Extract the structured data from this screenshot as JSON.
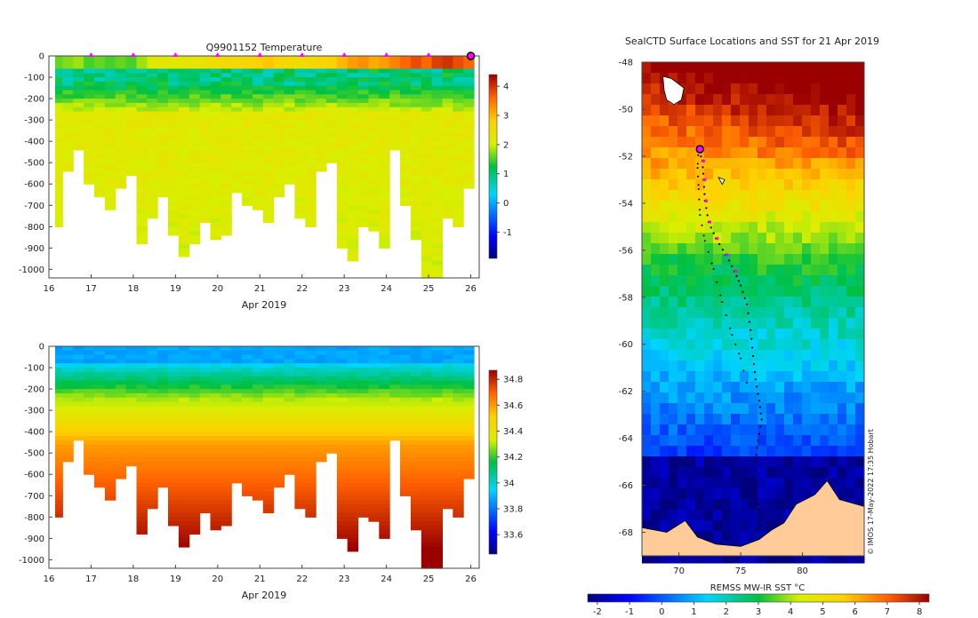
{
  "chart_data": [
    {
      "id": "temperature-section",
      "type": "heatmap",
      "title": "Q9901152  Temperature",
      "xlabel": "Apr 2019",
      "ylabel": "",
      "x_ticks": [
        "16",
        "17",
        "18",
        "19",
        "20",
        "21",
        "22",
        "23",
        "24",
        "25",
        "26"
      ],
      "xlim": [
        16,
        26.2
      ],
      "y_ticks": [
        "0",
        "-100",
        "-200",
        "-300",
        "-400",
        "-500",
        "-600",
        "-700",
        "-800",
        "-900",
        "-1000"
      ],
      "ylim": [
        -1040,
        0
      ],
      "profile_marker_days": [
        17,
        18,
        19,
        20,
        21,
        22,
        23,
        24,
        25
      ],
      "current_marker_day": 26,
      "profiles": {
        "day": [
          16.2,
          16.45,
          16.7,
          16.95,
          17.2,
          17.45,
          17.7,
          17.95,
          18.2,
          18.45,
          18.7,
          18.95,
          19.2,
          19.45,
          19.7,
          19.95,
          20.2,
          20.45,
          20.7,
          20.95,
          21.2,
          21.45,
          21.7,
          21.95,
          22.2,
          22.45,
          22.7,
          22.95,
          23.2,
          23.45,
          23.7,
          23.95,
          24.2,
          24.45,
          24.7,
          24.95,
          25.2,
          25.45,
          25.7,
          25.95
        ],
        "max_depth": [
          800,
          540,
          440,
          600,
          660,
          720,
          620,
          560,
          880,
          760,
          660,
          840,
          940,
          880,
          780,
          860,
          840,
          640,
          700,
          720,
          780,
          660,
          600,
          760,
          800,
          540,
          500,
          900,
          960,
          800,
          820,
          890,
          430,
          700,
          860,
          1040,
          1040,
          760,
          800,
          620
        ],
        "surface_temp": [
          1.6,
          1.7,
          1.8,
          1.5,
          1.6,
          1.5,
          1.6,
          1.5,
          1.8,
          2.2,
          2.3,
          2.2,
          2.3,
          2.3,
          2.4,
          2.5,
          2.6,
          2.6,
          2.7,
          2.8,
          2.9,
          2.7,
          2.6,
          2.5,
          2.6,
          2.7,
          2.8,
          3.0,
          3.2,
          3.3,
          3.1,
          3.2,
          3.4,
          3.6,
          3.8,
          3.6,
          3.9,
          4.0,
          3.8,
          3.6
        ]
      },
      "colorbar": {
        "ticks": [
          "4",
          "3",
          "2",
          "1",
          "0",
          "-1"
        ],
        "range": [
          -1.9,
          4.4
        ]
      }
    },
    {
      "id": "salinity-section",
      "type": "heatmap",
      "title": "",
      "xlabel": "Apr 2019",
      "x_ticks": [
        "16",
        "17",
        "18",
        "19",
        "20",
        "21",
        "22",
        "23",
        "24",
        "25",
        "26"
      ],
      "xlim": [
        16,
        26.2
      ],
      "y_ticks": [
        "0",
        "-100",
        "-200",
        "-300",
        "-400",
        "-500",
        "-600",
        "-700",
        "-800",
        "-900",
        "-1000"
      ],
      "ylim": [
        -1040,
        0
      ],
      "colorbar": {
        "ticks": [
          "34.8",
          "34.6",
          "34.4",
          "34.2",
          "34",
          "33.8",
          "33.6"
        ],
        "range": [
          33.45,
          34.87
        ]
      }
    },
    {
      "id": "sst-map",
      "type": "heatmap",
      "title": "SealCTD Surface Locations and SST for 21 Apr 2019",
      "x_ticks": [
        "70",
        "75",
        "80"
      ],
      "xlim": [
        67,
        85
      ],
      "y_ticks": [
        "-48",
        "-50",
        "-52",
        "-54",
        "-56",
        "-58",
        "-60",
        "-62",
        "-64",
        "-66",
        "-68"
      ],
      "ylim": [
        -69,
        -48
      ],
      "colorbar_label": "REMSS MW-IR SST °C",
      "colorbar": {
        "ticks": [
          "-2",
          "-1",
          "0",
          "1",
          "2",
          "3",
          "4",
          "5",
          "6",
          "7",
          "8"
        ],
        "range": [
          -2.3,
          8.3
        ]
      },
      "track_lon_lat": [
        [
          71.5,
          -51.6
        ],
        [
          71.9,
          -52.2
        ],
        [
          72.0,
          -53.0
        ],
        [
          72.1,
          -53.9
        ],
        [
          72.4,
          -54.8
        ],
        [
          73.0,
          -55.5
        ],
        [
          73.8,
          -56.2
        ],
        [
          74.5,
          -56.9
        ],
        [
          75.0,
          -57.5
        ],
        [
          75.5,
          -58.3
        ],
        [
          75.8,
          -59.4
        ],
        [
          76.0,
          -60.5
        ],
        [
          76.2,
          -61.5
        ],
        [
          76.5,
          -62.4
        ],
        [
          76.7,
          -63.2
        ],
        [
          76.4,
          -64.1
        ],
        [
          76.2,
          -65.0
        ],
        [
          76.0,
          -66.0
        ],
        [
          76.4,
          -66.8
        ],
        [
          76.6,
          -67.5
        ],
        [
          76.2,
          -68.0
        ]
      ],
      "return_track_lon_lat": [
        [
          71.6,
          -51.6
        ],
        [
          71.5,
          -52.5
        ],
        [
          71.6,
          -53.4
        ],
        [
          71.7,
          -54.5
        ],
        [
          72.1,
          -55.6
        ],
        [
          72.8,
          -56.8
        ],
        [
          73.5,
          -58.2
        ],
        [
          74.3,
          -59.6
        ],
        [
          75.0,
          -60.6
        ],
        [
          75.6,
          -61.9
        ]
      ],
      "current_position_lon_lat": [
        71.7,
        -51.7
      ],
      "credit": "© IMOS 17-May-2022 17:35 Hobart"
    }
  ]
}
